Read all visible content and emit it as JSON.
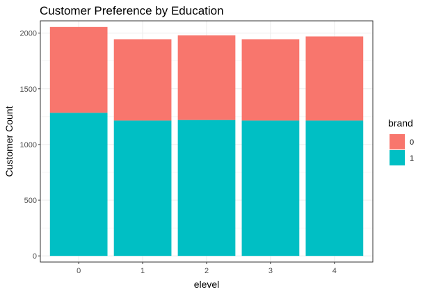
{
  "chart_data": {
    "type": "bar",
    "stacked": true,
    "title": "Customer Preference by Education",
    "xlabel": "elevel",
    "ylabel": "Customer Count",
    "categories": [
      "0",
      "1",
      "2",
      "3",
      "4"
    ],
    "series": [
      {
        "name": "0",
        "values": [
          770,
          730,
          760,
          730,
          755
        ],
        "color": "#F8766D"
      },
      {
        "name": "1",
        "values": [
          1285,
          1215,
          1220,
          1215,
          1215
        ],
        "color": "#00BFC4"
      }
    ],
    "ylim": [
      -55,
      2110
    ],
    "yticks": [
      0,
      500,
      1000,
      1500,
      2000
    ],
    "grid": true,
    "legend": {
      "title": "brand",
      "position": "right",
      "entries": [
        "0",
        "1"
      ]
    }
  }
}
